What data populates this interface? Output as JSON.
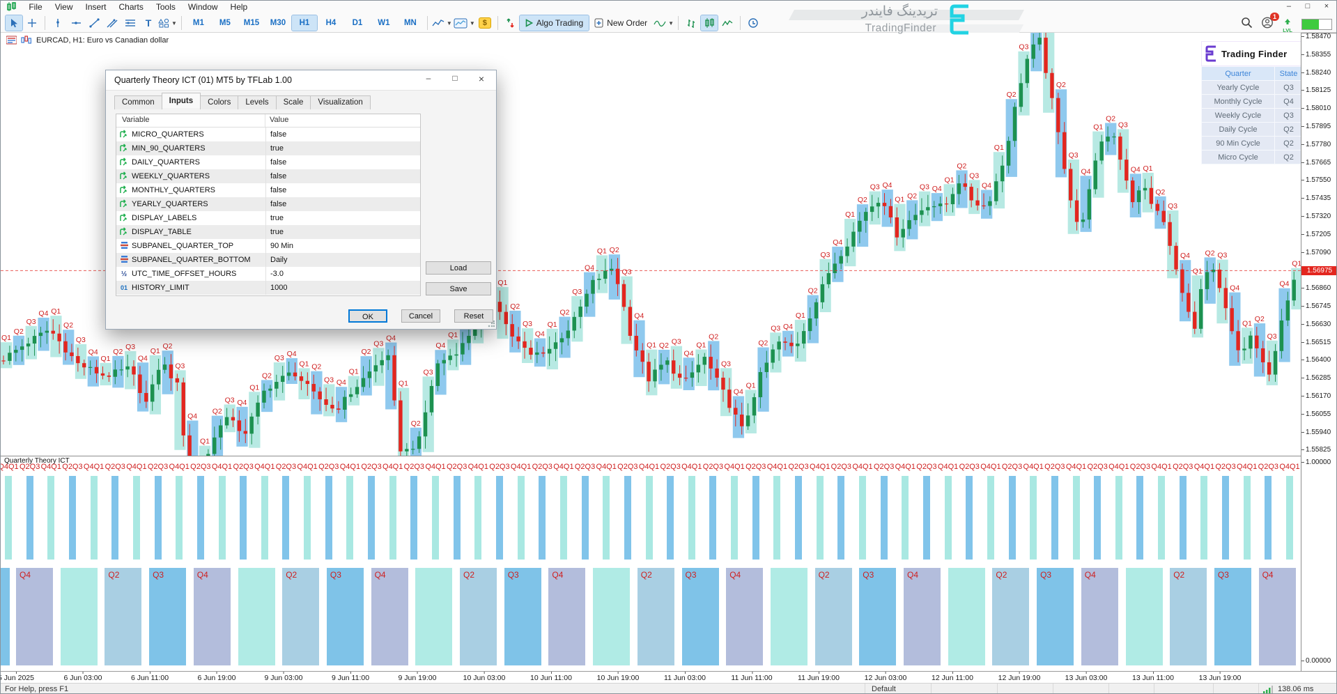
{
  "window_controls": {
    "minimize": "–",
    "maximize": "□",
    "close": "×"
  },
  "menu": {
    "items": [
      "File",
      "View",
      "Insert",
      "Charts",
      "Tools",
      "Window",
      "Help"
    ]
  },
  "toolbar": {
    "timeframes": [
      "M1",
      "M5",
      "M15",
      "M30",
      "H1",
      "H4",
      "D1",
      "W1",
      "MN"
    ],
    "active_timeframe": "H1",
    "algo_trading_label": "Algo Trading",
    "new_order_label": "New Order",
    "lvl_label": "LVL",
    "notification_count": "1"
  },
  "watermark": {
    "line1_fa": "تریدینگ فایندر",
    "line2_en": "TradingFinder"
  },
  "chart": {
    "symbol_title": "EURCAD, H1:  Euro vs Canadian dollar",
    "current_price": "1.56975",
    "price_ticks": [
      "1.58470",
      "1.58355",
      "1.58240",
      "1.58125",
      "1.58010",
      "1.57895",
      "1.57780",
      "1.57665",
      "1.57550",
      "1.57435",
      "1.57320",
      "1.57205",
      "1.57090",
      "1.56975",
      "1.56860",
      "1.56745",
      "1.56630",
      "1.56515",
      "1.56400",
      "1.56285",
      "1.56170",
      "1.56055",
      "1.55940",
      "1.55825"
    ],
    "time_labels": [
      "5 Jun 2025",
      "6 Jun 03:00",
      "6 Jun 11:00",
      "6 Jun 19:00",
      "9 Jun 03:00",
      "9 Jun 11:00",
      "9 Jun 19:00",
      "10 Jun 03:00",
      "10 Jun 11:00",
      "10 Jun 19:00",
      "11 Jun 03:00",
      "11 Jun 11:00",
      "11 Jun 19:00",
      "12 Jun 03:00",
      "12 Jun 11:00",
      "12 Jun 19:00",
      "13 Jun 03:00",
      "13 Jun 11:00",
      "13 Jun 19:00"
    ],
    "quarter_label_cycle": [
      "Q1",
      "Q2",
      "Q3",
      "Q4"
    ],
    "price_path": [
      [
        0,
        1.564
      ],
      [
        40,
        1.5652
      ],
      [
        70,
        1.566
      ],
      [
        110,
        1.5638
      ],
      [
        150,
        1.563
      ],
      [
        185,
        1.5635
      ],
      [
        210,
        1.5612
      ],
      [
        230,
        1.564
      ],
      [
        255,
        1.5623
      ],
      [
        270,
        1.5562
      ],
      [
        290,
        1.5572
      ],
      [
        320,
        1.5605
      ],
      [
        350,
        1.5593
      ],
      [
        380,
        1.5622
      ],
      [
        420,
        1.5633
      ],
      [
        450,
        1.5618
      ],
      [
        480,
        1.5608
      ],
      [
        520,
        1.5628
      ],
      [
        555,
        1.5645
      ],
      [
        575,
        1.558
      ],
      [
        600,
        1.5588
      ],
      [
        625,
        1.5637
      ],
      [
        660,
        1.5648
      ],
      [
        685,
        1.5666
      ],
      [
        710,
        1.568
      ],
      [
        730,
        1.5658
      ],
      [
        760,
        1.5643
      ],
      [
        790,
        1.5648
      ],
      [
        820,
        1.5663
      ],
      [
        850,
        1.569
      ],
      [
        880,
        1.57
      ],
      [
        905,
        1.5655
      ],
      [
        930,
        1.5628
      ],
      [
        955,
        1.564
      ],
      [
        980,
        1.5625
      ],
      [
        1010,
        1.5642
      ],
      [
        1040,
        1.5617
      ],
      [
        1065,
        1.5595
      ],
      [
        1090,
        1.563
      ],
      [
        1115,
        1.5652
      ],
      [
        1140,
        1.5648
      ],
      [
        1165,
        1.5672
      ],
      [
        1190,
        1.5698
      ],
      [
        1215,
        1.5715
      ],
      [
        1240,
        1.5735
      ],
      [
        1265,
        1.5745
      ],
      [
        1285,
        1.572
      ],
      [
        1300,
        1.5728
      ],
      [
        1330,
        1.574
      ],
      [
        1355,
        1.5738
      ],
      [
        1375,
        1.5755
      ],
      [
        1395,
        1.5742
      ],
      [
        1415,
        1.5738
      ],
      [
        1440,
        1.5768
      ],
      [
        1455,
        1.58
      ],
      [
        1470,
        1.583
      ],
      [
        1490,
        1.5847
      ],
      [
        1505,
        1.5815
      ],
      [
        1520,
        1.578
      ],
      [
        1535,
        1.5745
      ],
      [
        1550,
        1.572
      ],
      [
        1565,
        1.5758
      ],
      [
        1580,
        1.5778
      ],
      [
        1595,
        1.5788
      ],
      [
        1610,
        1.5765
      ],
      [
        1625,
        1.5742
      ],
      [
        1640,
        1.5752
      ],
      [
        1655,
        1.5738
      ],
      [
        1670,
        1.5728
      ],
      [
        1685,
        1.57
      ],
      [
        1700,
        1.568
      ],
      [
        1712,
        1.5655
      ],
      [
        1725,
        1.569
      ],
      [
        1738,
        1.57
      ],
      [
        1752,
        1.5682
      ],
      [
        1766,
        1.566
      ],
      [
        1780,
        1.5642
      ],
      [
        1794,
        1.5656
      ],
      [
        1808,
        1.564
      ],
      [
        1822,
        1.5632
      ],
      [
        1836,
        1.566
      ],
      [
        1850,
        1.5682
      ],
      [
        1862,
        1.5697
      ]
    ]
  },
  "subpanel": {
    "name": "Quarterly Theory ICT",
    "axis_top": "1.00000",
    "axis_bottom": "0.00000",
    "label_pattern": [
      "Q4Q1",
      "Q2Q3"
    ],
    "daily_sequence": [
      "Q4",
      "Q1",
      "Q2",
      "Q3"
    ],
    "daily_labeled": [
      "Q4",
      "Q2",
      "Q3"
    ]
  },
  "overlay_panel": {
    "brand": "Trading Finder",
    "headers": [
      "Quarter",
      "State"
    ],
    "rows": [
      [
        "Yearly Cycle",
        "Q3"
      ],
      [
        "Monthly Cycle",
        "Q4"
      ],
      [
        "Weekly Cycle",
        "Q3"
      ],
      [
        "Daily Cycle",
        "Q2"
      ],
      [
        "90 Min Cycle",
        "Q2"
      ],
      [
        "Micro Cycle",
        "Q2"
      ]
    ]
  },
  "dialog": {
    "title": "Quarterly Theory ICT (01) MT5 by TFLab 1.00",
    "tabs": [
      "Common",
      "Inputs",
      "Colors",
      "Levels",
      "Scale",
      "Visualization"
    ],
    "active_tab": "Inputs",
    "table_headers": [
      "Variable",
      "Value"
    ],
    "rows": [
      {
        "icon": "bool",
        "name": "MICRO_QUARTERS",
        "value": "false"
      },
      {
        "icon": "bool",
        "name": "MIN_90_QUARTERS",
        "value": "true"
      },
      {
        "icon": "bool",
        "name": "DAILY_QUARTERS",
        "value": "false"
      },
      {
        "icon": "bool",
        "name": "WEEKLY_QUARTERS",
        "value": "false"
      },
      {
        "icon": "bool",
        "name": "MONTHLY_QUARTERS",
        "value": "false"
      },
      {
        "icon": "bool",
        "name": "YEARLY_QUARTERS",
        "value": "false"
      },
      {
        "icon": "bool",
        "name": "DISPLAY_LABELS",
        "value": "true"
      },
      {
        "icon": "bool",
        "name": "DISPLAY_TABLE",
        "value": "true"
      },
      {
        "icon": "enum",
        "name": "SUBPANEL_QUARTER_TOP",
        "value": "90 Min"
      },
      {
        "icon": "enum",
        "name": "SUBPANEL_QUARTER_BOTTOM",
        "value": "Daily"
      },
      {
        "icon": "double",
        "name": "UTC_TIME_OFFSET_HOURS",
        "value": "-3.0"
      },
      {
        "icon": "int",
        "name": "HISTORY_LIMIT",
        "value": "1000"
      }
    ],
    "buttons": {
      "load": "Load",
      "save": "Save",
      "ok": "OK",
      "cancel": "Cancel",
      "reset": "Reset"
    }
  },
  "statusbar": {
    "help": "For Help, press F1",
    "profile": "Default",
    "latency": "138.06 ms"
  },
  "colors": {
    "candle_up": "#1d9150",
    "candle_down": "#e3261f",
    "band_cyan": "#b7e9e3",
    "band_blue": "#8fc9ee",
    "bar_cyan": "#a9e8e2",
    "bar_blue": "#81c4ea",
    "q1_block": "#b0ebe5",
    "q2_block": "#a9cfe3",
    "q3_block": "#7fc3e8",
    "q4_block": "#b3bddc",
    "quarter_label": "#cf1f1f",
    "accent_blue": "#1a6fc4",
    "brand_purple": "#6a3bd0",
    "watermark_cyan": "#22d3e3"
  }
}
